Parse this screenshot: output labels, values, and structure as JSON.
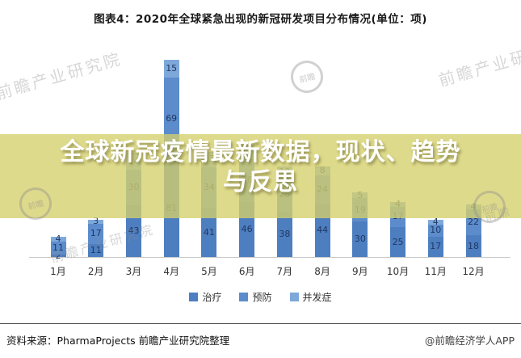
{
  "title": "图表4：2020年全球紧急出现的新冠研发项目分布情况(单位：项)",
  "overlay": {
    "line1": "全球新冠疫情最新数据，现状、趋势",
    "line2": "与反思",
    "bg_color": "#d5d06a",
    "text_color": "#ffffff"
  },
  "watermark_text": "前瞻产业研究院",
  "watermark_logo_text": "前瞻",
  "footer": {
    "source": "资料来源：PharmaProjects 前瞻产业研究院整理",
    "credit": "@前瞻经济学人APP"
  },
  "chart_data": {
    "type": "bar",
    "stacked": true,
    "title": "2020年全球紧急出现的新冠研发项目分布情况",
    "unit": "项",
    "xlabel": "",
    "ylabel": "",
    "grid": false,
    "legend_position": "bottom",
    "label_color": "#1f3864",
    "categories": [
      "1月",
      "2月",
      "3月",
      "4月",
      "5月",
      "6月",
      "7月",
      "8月",
      "9月",
      "10月",
      "11月",
      "12月"
    ],
    "series": [
      {
        "name": "治疗",
        "color": "#4d7ec0",
        "values": [
          2,
          11,
          43,
          81,
          41,
          46,
          38,
          44,
          30,
          25,
          17,
          18
        ]
      },
      {
        "name": "预防",
        "color": "#5c8ccb",
        "values": [
          11,
          17,
          30,
          69,
          34,
          36,
          28,
          24,
          19,
          17,
          10,
          22
        ]
      },
      {
        "name": "并发症",
        "color": "#7fa8da",
        "values": [
          4,
          3,
          14,
          15,
          13,
          12,
          10,
          8,
          5,
          4,
          4,
          4
        ]
      }
    ],
    "totals_approx": [
      17,
      31,
      87,
      165,
      88,
      94,
      76,
      76,
      54,
      46,
      31,
      44
    ]
  }
}
